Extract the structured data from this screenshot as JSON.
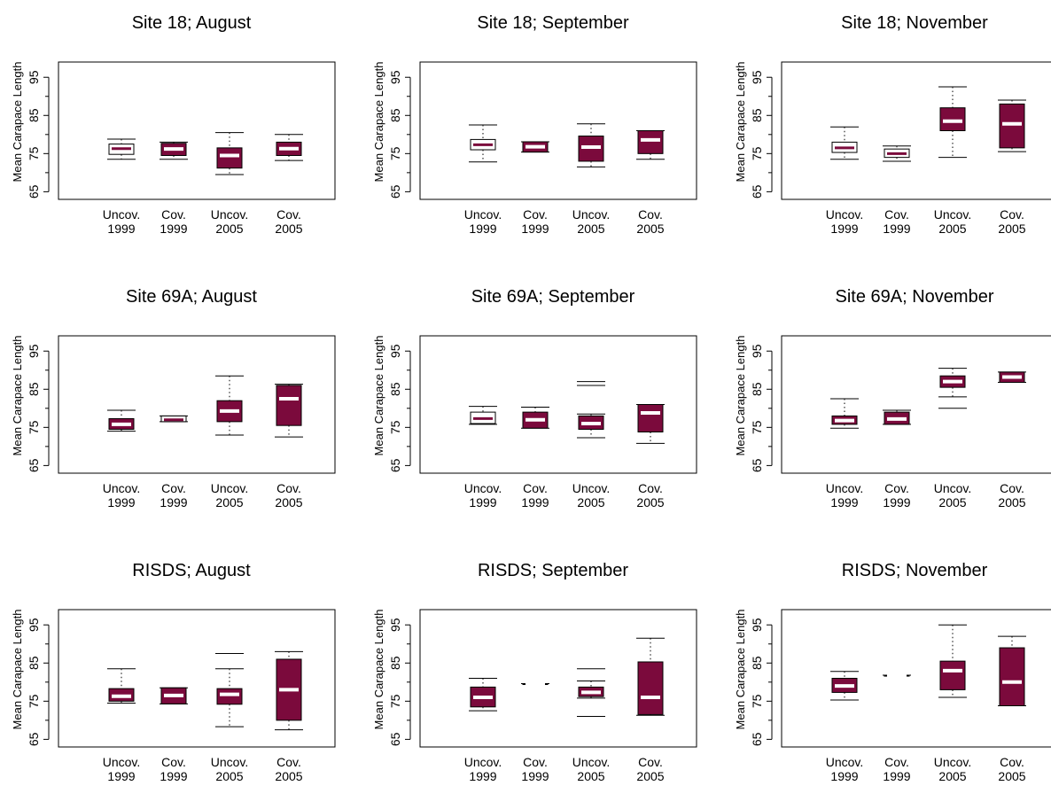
{
  "figure": {
    "colors": {
      "box_fill": "#7b0a3c",
      "median": "#ffffff",
      "axis": "#000000",
      "background": "#ffffff"
    }
  },
  "chart_data": [
    {
      "type": "box",
      "title": "Site 18; August",
      "ylabel": "Mean Carapace Length",
      "categories": [
        "Uncov.\n1999",
        "Cov.\n1999",
        "Uncov.\n2005",
        "Cov.\n2005"
      ],
      "ylim": [
        63,
        99
      ],
      "yticks": [
        65,
        75,
        85,
        95
      ],
      "boxes": [
        {
          "whisker_low": 73.5,
          "q1": 74.8,
          "median": 76.3,
          "q3": 77.5,
          "whisker_high": 78.8,
          "fill": false
        },
        {
          "whisker_low": 73.5,
          "q1": 74.5,
          "median": 76.2,
          "q3": 77.7,
          "whisker_high": 78,
          "fill": true
        },
        {
          "whisker_low": 69.5,
          "q1": 71.2,
          "median": 74.5,
          "q3": 76.5,
          "whisker_high": 80.5,
          "fill": true
        },
        {
          "whisker_low": 73.2,
          "q1": 74.5,
          "median": 76.3,
          "q3": 78,
          "whisker_high": 80,
          "fill": true
        }
      ]
    },
    {
      "type": "box",
      "title": "Site 18; September",
      "ylabel": "Mean Carapace Length",
      "categories": [
        "Uncov.\n1999",
        "Cov.\n1999",
        "Uncov.\n2005",
        "Cov.\n2005"
      ],
      "ylim": [
        63,
        99
      ],
      "yticks": [
        65,
        75,
        85,
        95
      ],
      "boxes": [
        {
          "whisker_low": 72.8,
          "q1": 76,
          "median": 77.3,
          "q3": 78.7,
          "whisker_high": 82.5,
          "fill": false
        },
        {
          "whisker_low": 75.4,
          "q1": 75.4,
          "median": 76.8,
          "q3": 78.1,
          "whisker_high": 78.1,
          "fill": true
        },
        {
          "whisker_low": 71.5,
          "q1": 73,
          "median": 76.7,
          "q3": 79.6,
          "whisker_high": 82.8,
          "fill": true
        },
        {
          "whisker_low": 73.5,
          "q1": 75,
          "median": 78.6,
          "q3": 81,
          "whisker_high": 81,
          "fill": true
        }
      ]
    },
    {
      "type": "box",
      "title": "Site 18; November",
      "ylabel": "Mean Carapace Length",
      "categories": [
        "Uncov.\n1999",
        "Cov.\n1999",
        "Uncov.\n2005",
        "Cov.\n2005"
      ],
      "ylim": [
        63,
        99
      ],
      "yticks": [
        65,
        75,
        85,
        95
      ],
      "boxes": [
        {
          "whisker_low": 73.5,
          "q1": 75.3,
          "median": 76.5,
          "q3": 78,
          "whisker_high": 82,
          "fill": false
        },
        {
          "whisker_low": 73,
          "q1": 74,
          "median": 75,
          "q3": 76.2,
          "whisker_high": 77,
          "fill": false
        },
        {
          "whisker_low": 74,
          "q1": 81,
          "median": 83.5,
          "q3": 87,
          "whisker_high": 92.5,
          "fill": true
        },
        {
          "whisker_low": 75.5,
          "q1": 76.5,
          "median": 82.8,
          "q3": 88,
          "whisker_high": 89,
          "fill": true
        }
      ]
    },
    {
      "type": "box",
      "title": "Site 69A; August",
      "ylabel": "Mean Carapace Length",
      "categories": [
        "Uncov.\n1999",
        "Cov.\n1999",
        "Uncov.\n2005",
        "Cov.\n2005"
      ],
      "ylim": [
        63,
        99
      ],
      "yticks": [
        65,
        75,
        85,
        95
      ],
      "boxes": [
        {
          "whisker_low": 74,
          "q1": 74.5,
          "median": 75.8,
          "q3": 77.3,
          "whisker_high": 79.5,
          "fill": true
        },
        {
          "whisker_low": 76.5,
          "q1": 76.5,
          "median": 77,
          "q3": 78,
          "whisker_high": 78,
          "fill": false
        },
        {
          "whisker_low": 73,
          "q1": 76.5,
          "median": 79.3,
          "q3": 82,
          "whisker_high": 88.5,
          "fill": true
        },
        {
          "whisker_low": 72.5,
          "q1": 75.5,
          "median": 82.5,
          "q3": 86,
          "whisker_high": 86.3,
          "fill": true
        }
      ],
      "outliers": []
    },
    {
      "type": "box",
      "title": "Site 69A; September",
      "ylabel": "Mean Carapace Length",
      "categories": [
        "Uncov.\n1999",
        "Cov.\n1999",
        "Uncov.\n2005",
        "Cov.\n2005"
      ],
      "ylim": [
        63,
        99
      ],
      "yticks": [
        65,
        75,
        85,
        95
      ],
      "boxes": [
        {
          "whisker_low": 75.8,
          "q1": 76,
          "median": 77.3,
          "q3": 79,
          "whisker_high": 80.5,
          "fill": false
        },
        {
          "whisker_low": 74.8,
          "q1": 74.8,
          "median": 77,
          "q3": 79,
          "whisker_high": 80.3,
          "fill": true
        },
        {
          "whisker_low": 72.3,
          "q1": 74.5,
          "median": 76,
          "q3": 78,
          "whisker_high": 78.5,
          "fill": true
        },
        {
          "whisker_low": 70.8,
          "q1": 73.8,
          "median": 78.8,
          "q3": 81,
          "whisker_high": 81,
          "fill": true
        }
      ],
      "outliers": [
        {
          "category": 2,
          "values": [
            86,
            87
          ]
        }
      ]
    },
    {
      "type": "box",
      "title": "Site 69A; November",
      "ylabel": "Mean Carapace Length",
      "categories": [
        "Uncov.\n1999",
        "Cov.\n1999",
        "Uncov.\n2005",
        "Cov.\n2005"
      ],
      "ylim": [
        63,
        99
      ],
      "yticks": [
        65,
        75,
        85,
        95
      ],
      "boxes": [
        {
          "whisker_low": 74.8,
          "q1": 75.8,
          "median": 76.8,
          "q3": 78,
          "whisker_high": 82.5,
          "fill": true
        },
        {
          "whisker_low": 75.8,
          "q1": 75.8,
          "median": 77.2,
          "q3": 79,
          "whisker_high": 79.5,
          "fill": true
        },
        {
          "whisker_low": 83,
          "q1": 85.5,
          "median": 87,
          "q3": 88.5,
          "whisker_high": 90.5,
          "fill": true
        },
        {
          "whisker_low": 86.8,
          "q1": 86.8,
          "median": 88.2,
          "q3": 89.5,
          "whisker_high": 89.5,
          "fill": true
        }
      ],
      "outliers": [
        {
          "category": 2,
          "values": [
            80
          ]
        }
      ]
    },
    {
      "type": "box",
      "title": "RISDS; August",
      "ylabel": "Mean Carapace Length",
      "categories": [
        "Uncov.\n1999",
        "Cov.\n1999",
        "Uncov.\n2005",
        "Cov.\n2005"
      ],
      "ylim": [
        63,
        99
      ],
      "yticks": [
        65,
        75,
        85,
        95
      ],
      "boxes": [
        {
          "whisker_low": 74.5,
          "q1": 75,
          "median": 76.3,
          "q3": 78.3,
          "whisker_high": 83.5,
          "fill": true
        },
        {
          "whisker_low": 74.3,
          "q1": 74.3,
          "median": 76.5,
          "q3": 78.5,
          "whisker_high": 78.5,
          "fill": true
        },
        {
          "whisker_low": 68.3,
          "q1": 74.2,
          "median": 76.8,
          "q3": 78.3,
          "whisker_high": 83.5,
          "fill": true
        },
        {
          "whisker_low": 67.5,
          "q1": 70,
          "median": 78,
          "q3": 86,
          "whisker_high": 88,
          "fill": true
        }
      ],
      "outliers": [
        {
          "category": 2,
          "values": [
            87.5
          ]
        }
      ]
    },
    {
      "type": "box",
      "title": "RISDS; September",
      "ylabel": "Mean Carapace Length",
      "categories": [
        "Uncov.\n1999",
        "Cov.\n1999",
        "Uncov.\n2005",
        "Cov.\n2005"
      ],
      "ylim": [
        63,
        99
      ],
      "yticks": [
        65,
        75,
        85,
        95
      ],
      "boxes": [
        {
          "whisker_low": 72.5,
          "q1": 73.5,
          "median": 76,
          "q3": 78.7,
          "whisker_high": 81,
          "fill": true
        },
        {
          "whisker_low": 79.6,
          "q1": 79.6,
          "median": 79.6,
          "q3": 79.6,
          "whisker_high": 79.6,
          "fill": true
        },
        {
          "whisker_low": 75.8,
          "q1": 76.2,
          "median": 77.3,
          "q3": 78.7,
          "whisker_high": 80.3,
          "fill": true
        },
        {
          "whisker_low": 71.3,
          "q1": 71.5,
          "median": 76,
          "q3": 85.3,
          "whisker_high": 91.5,
          "fill": true
        }
      ],
      "outliers": [
        {
          "category": 2,
          "values": [
            71,
            83.5
          ]
        }
      ]
    },
    {
      "type": "box",
      "title": "RISDS; November",
      "ylabel": "Mean Carapace Length",
      "categories": [
        "Uncov.\n1999",
        "Cov.\n1999",
        "Uncov.\n2005",
        "Cov.\n2005"
      ],
      "ylim": [
        63,
        99
      ],
      "yticks": [
        65,
        75,
        85,
        95
      ],
      "boxes": [
        {
          "whisker_low": 75.3,
          "q1": 77.3,
          "median": 79,
          "q3": 81,
          "whisker_high": 82.8,
          "fill": true
        },
        {
          "whisker_low": 81.8,
          "q1": 81.8,
          "median": 81.8,
          "q3": 81.8,
          "whisker_high": 81.8,
          "fill": true
        },
        {
          "whisker_low": 76,
          "q1": 78,
          "median": 83,
          "q3": 85.5,
          "whisker_high": 95,
          "fill": true
        },
        {
          "whisker_low": 73.8,
          "q1": 73.8,
          "median": 80,
          "q3": 89,
          "whisker_high": 92,
          "fill": true
        }
      ]
    }
  ]
}
